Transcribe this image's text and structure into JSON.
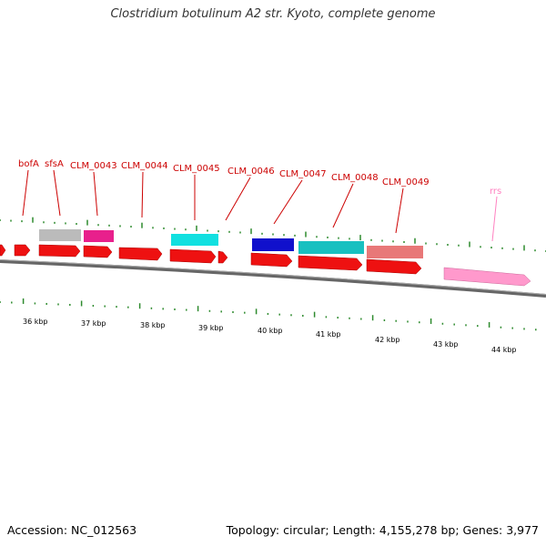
{
  "title": "Clostridium botulinum A2 str. Kyoto, complete genome",
  "footer": {
    "accession": "Accession: NC_012563",
    "summary": "Topology: circular; Length: 4,155,278 bp; Genes: 3,977"
  },
  "colors": {
    "label_red": "#cc0000",
    "label_pink": "#ff80c0",
    "tick_green": "#2e8b2e",
    "backbone": "#777777"
  },
  "kbp_ticks": [
    "36 kbp",
    "37 kbp",
    "38 kbp",
    "39 kbp",
    "40 kbp",
    "41 kbp",
    "42 kbp",
    "43 kbp",
    "44 kbp"
  ],
  "gene_labels": [
    {
      "text": "bofA",
      "color": "label_red"
    },
    {
      "text": "sfsA",
      "color": "label_red"
    },
    {
      "text": "CLM_0043",
      "color": "label_red"
    },
    {
      "text": "CLM_0044",
      "color": "label_red"
    },
    {
      "text": "CLM_0045",
      "color": "label_red"
    },
    {
      "text": "CLM_0046",
      "color": "label_red"
    },
    {
      "text": "CLM_0047",
      "color": "label_red"
    },
    {
      "text": "CLM_0048",
      "color": "label_red"
    },
    {
      "text": "CLM_0049",
      "color": "label_red"
    },
    {
      "text": "rrs",
      "color": "label_pink"
    }
  ],
  "features": {
    "cds_color": "#ee1111",
    "cog_colors": [
      "#bbbbbb",
      "#e8208c",
      "#11e0e0",
      "#1010cc",
      "#18c0c0",
      "#e87878"
    ],
    "rrna_color": "#ff99cc"
  }
}
